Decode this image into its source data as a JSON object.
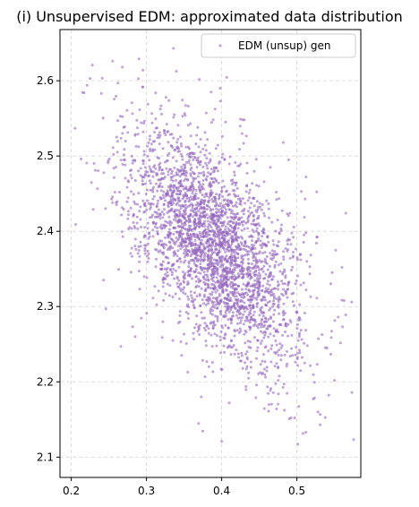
{
  "chart_data": {
    "type": "scatter",
    "title": "(i) Unsupervised EDM: approximated data distribution",
    "xlabel": "",
    "ylabel": "",
    "xlim": [
      0.185,
      0.585
    ],
    "ylim": [
      2.073,
      2.668
    ],
    "xticks": [
      0.2,
      0.3,
      0.4,
      0.5
    ],
    "yticks": [
      2.1,
      2.2,
      2.3,
      2.4,
      2.5,
      2.6
    ],
    "xtick_labels": [
      "0.2",
      "0.3",
      "0.4",
      "0.5"
    ],
    "ytick_labels": [
      "2.1",
      "2.2",
      "2.3",
      "2.4",
      "2.5",
      "2.6"
    ],
    "grid": true,
    "legend_position": "top-right",
    "series": [
      {
        "name": "EDM (unsup) gen",
        "color": "#9467bd",
        "marker": "circle",
        "n_points": 3000,
        "distribution": {
          "mean": [
            0.39,
            2.38
          ],
          "std": [
            0.055,
            0.075
          ],
          "correlation": -0.55
        },
        "points": [
          [
            0.205,
            2.537
          ],
          [
            0.206,
            2.409
          ],
          [
            0.225,
            2.603
          ],
          [
            0.255,
            2.626
          ],
          [
            0.29,
            2.629
          ],
          [
            0.336,
            2.643
          ],
          [
            0.217,
            2.584
          ],
          [
            0.24,
            2.583
          ],
          [
            0.262,
            2.597
          ],
          [
            0.268,
            2.618
          ],
          [
            0.326,
            2.578
          ],
          [
            0.386,
            2.585
          ],
          [
            0.398,
            2.59
          ],
          [
            0.425,
            2.549
          ],
          [
            0.428,
            2.548
          ],
          [
            0.506,
            2.453
          ],
          [
            0.511,
            2.443
          ],
          [
            0.565,
            2.424
          ],
          [
            0.527,
            2.392
          ],
          [
            0.547,
            2.345
          ],
          [
            0.56,
            2.352
          ],
          [
            0.565,
            2.289
          ],
          [
            0.555,
            2.286
          ],
          [
            0.54,
            2.245
          ],
          [
            0.55,
            2.202
          ],
          [
            0.528,
            2.16
          ],
          [
            0.531,
            2.143
          ],
          [
            0.512,
            2.133
          ],
          [
            0.49,
            2.151
          ],
          [
            0.473,
            2.164
          ],
          [
            0.4,
            2.121
          ],
          [
            0.41,
            2.172
          ],
          [
            0.373,
            2.18
          ],
          [
            0.321,
            2.259
          ],
          [
            0.285,
            2.26
          ],
          [
            0.266,
            2.247
          ],
          [
            0.246,
            2.297
          ],
          [
            0.243,
            2.335
          ],
          [
            0.213,
            2.496
          ],
          [
            0.232,
            2.481
          ],
          [
            0.482,
            2.518
          ],
          [
            0.489,
            2.495
          ],
          [
            0.463,
            2.418
          ],
          [
            0.512,
            2.398
          ]
        ]
      }
    ]
  }
}
